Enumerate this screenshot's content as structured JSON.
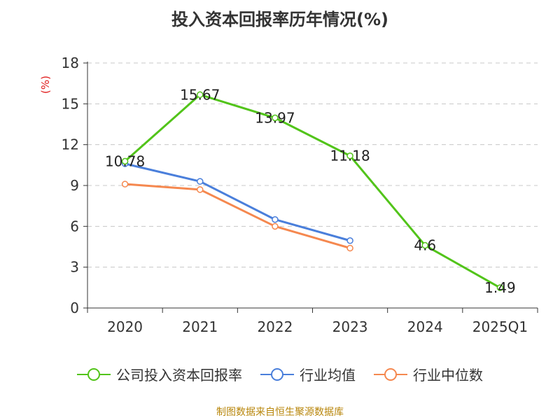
{
  "chart_data": {
    "type": "line",
    "title": "投入资本回报率历年情况(%)",
    "ylabel": "(%)",
    "xlabel": "",
    "categories": [
      "2020",
      "2021",
      "2022",
      "2023",
      "2024",
      "2025Q1"
    ],
    "ylim": [
      0,
      18
    ],
    "yticks": [
      0,
      3,
      6,
      9,
      12,
      15,
      18
    ],
    "grid": true,
    "legend_position": "bottom",
    "series": [
      {
        "name": "公司投入资本回报率",
        "color": "#52c41a",
        "values": [
          10.78,
          15.67,
          13.97,
          11.18,
          4.6,
          1.49
        ],
        "labels": [
          "10.78",
          "15.67",
          "13.97",
          "11.18",
          "4.6",
          "1.49"
        ]
      },
      {
        "name": "行业均值",
        "color": "#4a7fdb",
        "values": [
          10.6,
          9.3,
          6.5,
          4.95,
          null,
          null
        ]
      },
      {
        "name": "行业中位数",
        "color": "#f5884f",
        "values": [
          9.1,
          8.7,
          6.0,
          4.4,
          null,
          null
        ]
      }
    ]
  },
  "source": "制图数据来自恒生聚源数据库"
}
